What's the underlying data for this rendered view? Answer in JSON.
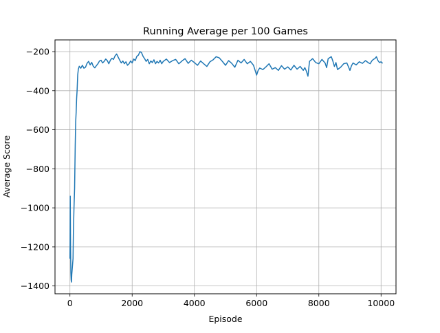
{
  "chart_data": {
    "type": "line",
    "title": "Running Average per 100 Games",
    "xlabel": "Episode",
    "ylabel": "Average Score",
    "xlim": [
      -480,
      10480
    ],
    "ylim": [
      -1440,
      -140
    ],
    "xticks": [
      0,
      2000,
      4000,
      6000,
      8000,
      10000
    ],
    "yticks": [
      -1400,
      -1200,
      -1000,
      -800,
      -600,
      -400,
      -200
    ],
    "grid": true,
    "line_color": "#1f77b4",
    "series": [
      {
        "values": [
          [
            0,
            -1260
          ],
          [
            5,
            -1180
          ],
          [
            10,
            -940
          ],
          [
            20,
            -1200
          ],
          [
            30,
            -1330
          ],
          [
            40,
            -1370
          ],
          [
            50,
            -1380
          ],
          [
            60,
            -1340
          ],
          [
            80,
            -1300
          ],
          [
            100,
            -1260
          ],
          [
            110,
            -1140
          ],
          [
            130,
            -1000
          ],
          [
            150,
            -900
          ],
          [
            170,
            -680
          ],
          [
            185,
            -560
          ],
          [
            200,
            -510
          ],
          [
            215,
            -440
          ],
          [
            230,
            -400
          ],
          [
            250,
            -320
          ],
          [
            270,
            -290
          ],
          [
            300,
            -275
          ],
          [
            350,
            -285
          ],
          [
            400,
            -270
          ],
          [
            450,
            -285
          ],
          [
            500,
            -280
          ],
          [
            550,
            -260
          ],
          [
            600,
            -250
          ],
          [
            650,
            -268
          ],
          [
            700,
            -255
          ],
          [
            750,
            -275
          ],
          [
            800,
            -283
          ],
          [
            850,
            -272
          ],
          [
            900,
            -262
          ],
          [
            950,
            -248
          ],
          [
            1000,
            -244
          ],
          [
            1050,
            -258
          ],
          [
            1100,
            -250
          ],
          [
            1150,
            -238
          ],
          [
            1200,
            -246
          ],
          [
            1250,
            -262
          ],
          [
            1300,
            -244
          ],
          [
            1350,
            -234
          ],
          [
            1400,
            -240
          ],
          [
            1450,
            -222
          ],
          [
            1500,
            -212
          ],
          [
            1550,
            -228
          ],
          [
            1600,
            -244
          ],
          [
            1650,
            -258
          ],
          [
            1700,
            -248
          ],
          [
            1750,
            -262
          ],
          [
            1800,
            -252
          ],
          [
            1850,
            -270
          ],
          [
            1900,
            -262
          ],
          [
            1950,
            -248
          ],
          [
            2000,
            -258
          ],
          [
            2050,
            -238
          ],
          [
            2100,
            -246
          ],
          [
            2150,
            -224
          ],
          [
            2200,
            -218
          ],
          [
            2250,
            -200
          ],
          [
            2300,
            -205
          ],
          [
            2350,
            -224
          ],
          [
            2400,
            -236
          ],
          [
            2450,
            -250
          ],
          [
            2500,
            -240
          ],
          [
            2550,
            -262
          ],
          [
            2600,
            -248
          ],
          [
            2650,
            -256
          ],
          [
            2700,
            -242
          ],
          [
            2750,
            -262
          ],
          [
            2800,
            -250
          ],
          [
            2850,
            -258
          ],
          [
            2900,
            -244
          ],
          [
            2950,
            -262
          ],
          [
            3000,
            -250
          ],
          [
            3100,
            -238
          ],
          [
            3200,
            -256
          ],
          [
            3300,
            -246
          ],
          [
            3400,
            -240
          ],
          [
            3500,
            -262
          ],
          [
            3600,
            -248
          ],
          [
            3700,
            -236
          ],
          [
            3800,
            -260
          ],
          [
            3900,
            -244
          ],
          [
            4000,
            -256
          ],
          [
            4100,
            -270
          ],
          [
            4200,
            -248
          ],
          [
            4300,
            -262
          ],
          [
            4400,
            -276
          ],
          [
            4500,
            -252
          ],
          [
            4600,
            -242
          ],
          [
            4700,
            -226
          ],
          [
            4800,
            -232
          ],
          [
            4900,
            -250
          ],
          [
            5000,
            -270
          ],
          [
            5100,
            -246
          ],
          [
            5200,
            -260
          ],
          [
            5300,
            -280
          ],
          [
            5400,
            -244
          ],
          [
            5500,
            -258
          ],
          [
            5600,
            -240
          ],
          [
            5700,
            -262
          ],
          [
            5800,
            -250
          ],
          [
            5900,
            -270
          ],
          [
            5960,
            -300
          ],
          [
            6000,
            -320
          ],
          [
            6050,
            -296
          ],
          [
            6100,
            -284
          ],
          [
            6200,
            -292
          ],
          [
            6300,
            -278
          ],
          [
            6400,
            -262
          ],
          [
            6500,
            -290
          ],
          [
            6600,
            -282
          ],
          [
            6700,
            -296
          ],
          [
            6800,
            -272
          ],
          [
            6900,
            -290
          ],
          [
            7000,
            -278
          ],
          [
            7100,
            -294
          ],
          [
            7200,
            -270
          ],
          [
            7300,
            -290
          ],
          [
            7400,
            -276
          ],
          [
            7500,
            -296
          ],
          [
            7550,
            -282
          ],
          [
            7600,
            -300
          ],
          [
            7650,
            -326
          ],
          [
            7700,
            -250
          ],
          [
            7800,
            -236
          ],
          [
            7900,
            -256
          ],
          [
            8000,
            -262
          ],
          [
            8100,
            -240
          ],
          [
            8200,
            -258
          ],
          [
            8250,
            -282
          ],
          [
            8300,
            -236
          ],
          [
            8400,
            -226
          ],
          [
            8450,
            -248
          ],
          [
            8500,
            -276
          ],
          [
            8550,
            -256
          ],
          [
            8600,
            -292
          ],
          [
            8700,
            -280
          ],
          [
            8800,
            -262
          ],
          [
            8900,
            -258
          ],
          [
            9000,
            -296
          ],
          [
            9050,
            -272
          ],
          [
            9100,
            -258
          ],
          [
            9200,
            -268
          ],
          [
            9300,
            -252
          ],
          [
            9400,
            -260
          ],
          [
            9500,
            -246
          ],
          [
            9600,
            -258
          ],
          [
            9650,
            -262
          ],
          [
            9700,
            -248
          ],
          [
            9750,
            -240
          ],
          [
            9800,
            -236
          ],
          [
            9850,
            -226
          ],
          [
            9900,
            -246
          ],
          [
            9950,
            -256
          ],
          [
            10000,
            -252
          ],
          [
            10050,
            -260
          ]
        ]
      }
    ]
  }
}
